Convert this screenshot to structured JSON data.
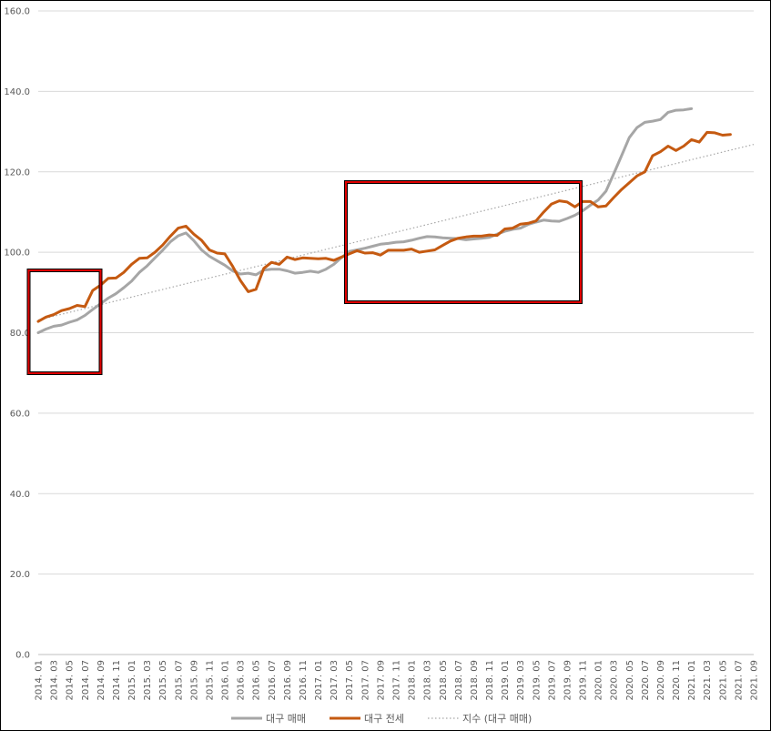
{
  "chart_data": {
    "type": "line",
    "ylim": [
      0,
      160
    ],
    "y_ticks": [
      "0.0",
      "20.0",
      "40.0",
      "60.0",
      "80.0",
      "100.0",
      "120.0",
      "140.0",
      "160.0"
    ],
    "x_tick_labels": [
      "2014. 01",
      "2014. 03",
      "2014. 05",
      "2014. 07",
      "2014. 09",
      "2014. 11",
      "2015. 01",
      "2015. 03",
      "2015. 05",
      "2015. 07",
      "2015. 09",
      "2015. 11",
      "2016. 01",
      "2016. 03",
      "2016. 05",
      "2016. 07",
      "2016. 09",
      "2016. 11",
      "2017. 01",
      "2017. 03",
      "2017. 05",
      "2017. 07",
      "2017. 09",
      "2017. 11",
      "2018. 01",
      "2018. 03",
      "2018. 05",
      "2018. 07",
      "2018. 09",
      "2018. 11",
      "2019. 01",
      "2019. 03",
      "2019. 05",
      "2019. 07",
      "2019. 09",
      "2019. 11",
      "2020. 01",
      "2020. 03",
      "2020. 05",
      "2020. 07",
      "2020. 09",
      "2020. 11",
      "2021. 01",
      "2021. 03",
      "2021. 05",
      "2021. 07",
      "2021. 09"
    ],
    "grid": true,
    "legend_position": "bottom",
    "series": [
      {
        "name": "대구 매매",
        "color": "#a6a6a6",
        "values": [
          80.0,
          80.9,
          81.6,
          81.9,
          82.6,
          83.2,
          84.3,
          85.8,
          87.2,
          88.6,
          89.7,
          91.2,
          92.8,
          95.0,
          96.6,
          98.6,
          100.5,
          102.6,
          104.1,
          104.8,
          102.9,
          100.6,
          99.0,
          97.9,
          96.8,
          95.4,
          94.6,
          94.8,
          94.4,
          95.6,
          95.8,
          95.8,
          95.4,
          94.8,
          95.0,
          95.3,
          95.0,
          95.8,
          97.0,
          98.7,
          100.2,
          100.6,
          101.0,
          101.5,
          102.0,
          102.2,
          102.5,
          102.6,
          103.0,
          103.5,
          103.9,
          103.8,
          103.6,
          103.5,
          103.4,
          103.1,
          103.3,
          103.5,
          103.7,
          104.5,
          105.2,
          105.7,
          106.0,
          106.9,
          107.5,
          108.0,
          107.8,
          107.7,
          108.4,
          109.2,
          110.3,
          111.7,
          113.0,
          115.2,
          119.5,
          124.0,
          128.5,
          131.0,
          132.3,
          132.6,
          133.0,
          134.8,
          135.3,
          135.4,
          135.7
        ]
      },
      {
        "name": "대구 전세",
        "color": "#c55a11",
        "values": [
          82.8,
          83.9,
          84.5,
          85.5,
          86.0,
          86.8,
          86.5,
          90.5,
          91.8,
          93.5,
          93.6,
          95.0,
          97.0,
          98.5,
          98.6,
          100.0,
          101.8,
          104.0,
          106.0,
          106.5,
          104.5,
          103.0,
          100.6,
          99.8,
          99.6,
          96.5,
          93.0,
          90.2,
          90.8,
          96.0,
          97.5,
          97.0,
          98.8,
          98.2,
          98.6,
          98.5,
          98.4,
          98.5,
          98.0,
          98.8,
          99.6,
          100.4,
          99.8,
          99.9,
          99.3,
          100.5,
          100.5,
          100.5,
          100.8,
          100.0,
          100.3,
          100.6,
          101.7,
          102.8,
          103.5,
          103.8,
          104.0,
          104.0,
          104.3,
          104.2,
          105.8,
          106.0,
          107.0,
          107.2,
          107.8,
          110.0,
          112.0,
          112.8,
          112.5,
          111.3,
          112.6,
          112.6,
          111.3,
          111.5,
          113.6,
          115.6,
          117.3,
          119.0,
          120.0,
          124.0,
          125.0,
          126.4,
          125.3,
          126.4,
          128.0,
          127.4,
          129.8,
          129.7,
          129.1,
          129.3
        ]
      },
      {
        "name": "지수 (대구 매매)",
        "color": "#a6a6a6",
        "trendline": true
      }
    ]
  }
}
